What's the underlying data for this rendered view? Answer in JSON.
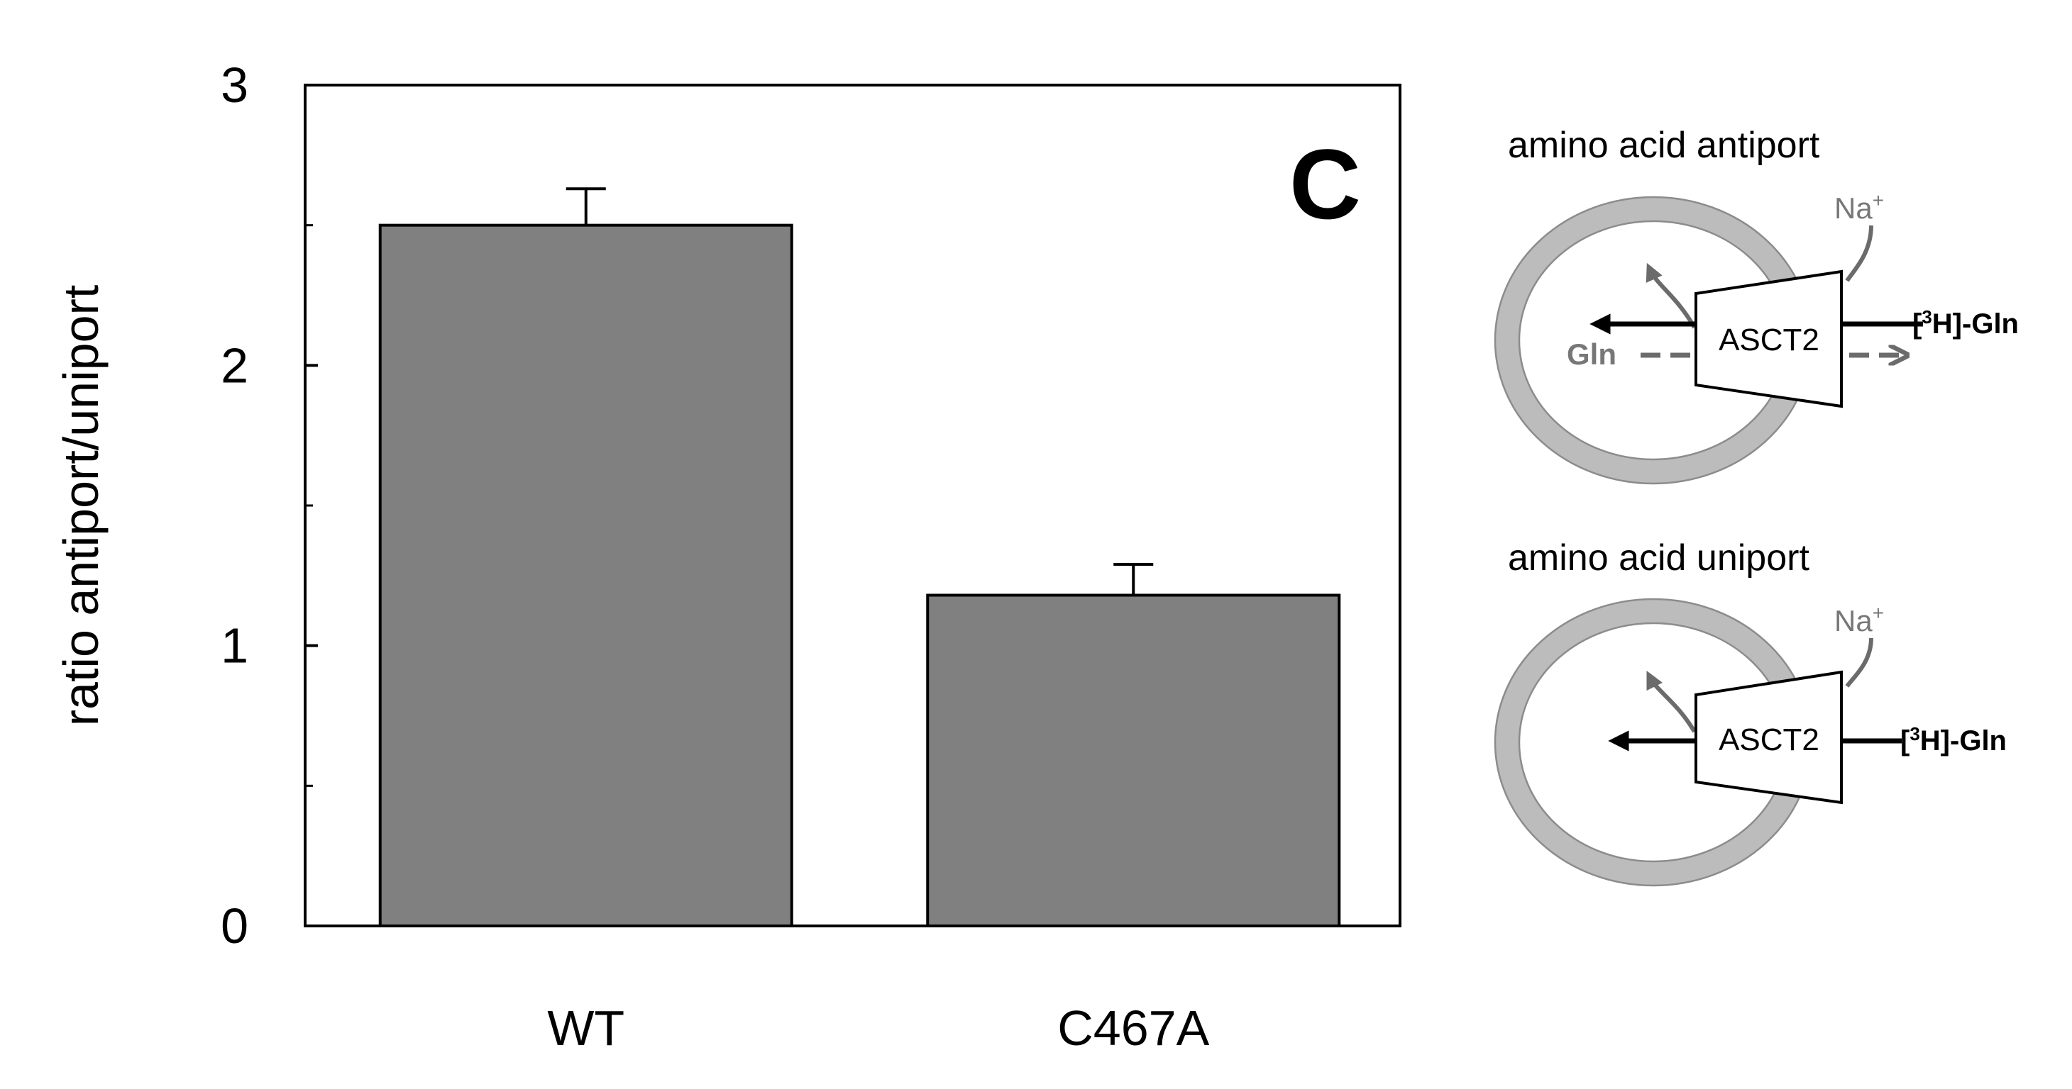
{
  "chart_data": {
    "type": "bar",
    "title": "",
    "panel_label": "C",
    "xlabel": "",
    "ylabel": "ratio antiport/uniport",
    "categories": [
      "WT",
      "C467A"
    ],
    "values": [
      2.5,
      1.18
    ],
    "errors": [
      0.13,
      0.11
    ],
    "ylim": [
      0,
      3
    ],
    "major_ticks": [
      0,
      1,
      2,
      3
    ],
    "minor_ticks": [
      0.5,
      1.5,
      2.5
    ],
    "grid": false,
    "bar_color": "#808080"
  },
  "schemes": {
    "antiport": {
      "title": "amino acid antiport",
      "transporter": "ASCT2",
      "ion": "Na",
      "ion_charge": "+",
      "substrate_in": "Gln",
      "substrate_out_open": "[",
      "substrate_out_iso": "3",
      "substrate_out_close": "H]-Gln"
    },
    "uniport": {
      "title": "amino acid uniport",
      "transporter": "ASCT2",
      "ion": "Na",
      "ion_charge": "+",
      "substrate_out_open": "[",
      "substrate_out_iso": "3",
      "substrate_out_close": "H]-Gln"
    }
  },
  "colors": {
    "bar": "#808080",
    "ring": "#bcbcbc",
    "grey_arrow": "#6b6b6b",
    "label_grey": "#777777"
  }
}
